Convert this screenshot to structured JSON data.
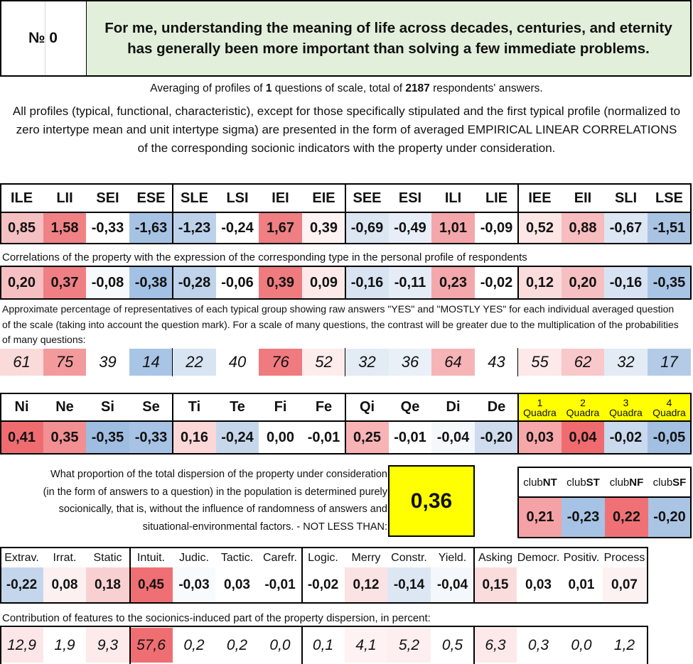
{
  "header": {
    "number_label": "№ 0",
    "title": "For me, understanding the meaning of life across decades, centuries, and eternity has generally been more important than solving a few immediate problems."
  },
  "summary": {
    "prefix": "Averaging of profiles of ",
    "questions": "1",
    "middle": " questions of scale, total of ",
    "respondents": "2187",
    "suffix": " respondents' answers."
  },
  "intro": "All profiles (typical, functional, characteristic), except for those specifically stipulated and the first typical profile (normalized to zero intertype mean and unit intertype sigma) are presented in the form of averaged EMPIRICAL LINEAR CORRELATIONS of the corresponding socionic indicators with the property under consideration.",
  "types": {
    "labels": [
      "ILE",
      "LII",
      "SEI",
      "ESE",
      "SLE",
      "LSI",
      "IEI",
      "EIE",
      "SEE",
      "ESI",
      "ILI",
      "LIE",
      "IEE",
      "EII",
      "SLI",
      "LSE"
    ],
    "normalized": [
      "0,85",
      "1,58",
      "-0,33",
      "-1,63",
      "-1,23",
      "-0,24",
      "1,67",
      "0,39",
      "-0,69",
      "-0,49",
      "1,01",
      "-0,09",
      "0,52",
      "0,88",
      "-0,67",
      "-1,51"
    ],
    "normalized_colors": [
      "#f5c0c2",
      "#f08286",
      "#ffffff",
      "#a7c3e4",
      "#bcd1ea",
      "#ffffff",
      "#ef7f82",
      "#fff2f2",
      "#dce6f2",
      "#e8eef7",
      "#f4a7aa",
      "#ffffff",
      "#fde6e6",
      "#f7bcbe",
      "#dde6f3",
      "#a9c3e3"
    ],
    "correlation_caption": "Correlations of the property with the expression of the corresponding type in the personal profile of respondents",
    "correlations": [
      "0,20",
      "0,37",
      "-0,08",
      "-0,38",
      "-0,28",
      "-0,06",
      "0,39",
      "0,09",
      "-0,16",
      "-0,11",
      "0,23",
      "-0,02",
      "0,12",
      "0,20",
      "-0,16",
      "-0,35"
    ],
    "correlation_colors": [
      "#f6c0c2",
      "#f07f83",
      "#f7f9fc",
      "#a3c1e4",
      "#bfd3ea",
      "#ffffff",
      "#ef7b7f",
      "#fde9e9",
      "#d8e4f2",
      "#e5ecf6",
      "#f4a8ab",
      "#ffffff",
      "#fbdcdc",
      "#f6c0c2",
      "#d7e3f2",
      "#a9c5e5"
    ],
    "percent_caption": "Approximate percentage of representatives of each typical group showing raw answers \"YES\" and \"MOSTLY YES\" for each individual averaged question of the scale (taking into account the question mark). For a scale of many questions, the contrast will be greater due to the multiplication of the probabilities of many questions:",
    "percents": [
      "61",
      "75",
      "39",
      "14",
      "22",
      "40",
      "76",
      "52",
      "32",
      "36",
      "64",
      "43",
      "55",
      "62",
      "32",
      "17"
    ],
    "percent_colors": [
      "#fbdada",
      "#f39a9d",
      "#ffffff",
      "#a9c5e5",
      "#d8e4f2",
      "#ffffff",
      "#f07b7f",
      "#fdecec",
      "#e3ebf5",
      "#eaf0f8",
      "#f6b4b7",
      "#ffffff",
      "#fde9e9",
      "#f8c8ca",
      "#e3ebf5",
      "#b3cbe7"
    ]
  },
  "functions": {
    "labels": [
      "Ni",
      "Ne",
      "Si",
      "Se",
      "Ti",
      "Te",
      "Fi",
      "Fe",
      "Qi",
      "Qe",
      "Di",
      "De"
    ],
    "values": [
      "0,41",
      "0,35",
      "-0,35",
      "-0,33",
      "0,16",
      "-0,24",
      "0,00",
      "-0,01",
      "0,25",
      "-0,01",
      "-0,04",
      "-0,20"
    ],
    "colors": [
      "#ee6c70",
      "#f18f92",
      "#9fbde1",
      "#a6c2e4",
      "#fbd7d8",
      "#c6d7ec",
      "#ffffff",
      "#ffffff",
      "#f7b3b6",
      "#ffffff",
      "#f5f8fb",
      "#cfdcee"
    ]
  },
  "quadras": {
    "labels": [
      {
        "num": "1",
        "word": "Quadra"
      },
      {
        "num": "2",
        "word": "Quadra"
      },
      {
        "num": "3",
        "word": "Quadra"
      },
      {
        "num": "4",
        "word": "Quadra"
      }
    ],
    "values": [
      "0,03",
      "0,04",
      "-0,02",
      "-0,05"
    ],
    "colors": [
      "#f5a7aa",
      "#ef6b6f",
      "#c9d9ee",
      "#a3bfe2"
    ]
  },
  "dispersion": {
    "text": "What proportion of the total dispersion of the property under consideration (in the form of answers to a question) in the population is determined purely socionically, that is, without the influence of randomness of answers and situational-environmental factors. - NOT LESS THAN:",
    "value": "0,36"
  },
  "clubs": {
    "labels": [
      {
        "pre": "club",
        "bold": "NT"
      },
      {
        "pre": "club",
        "bold": "ST"
      },
      {
        "pre": "club",
        "bold": "NF"
      },
      {
        "pre": "club",
        "bold": "SF"
      }
    ],
    "values": [
      "0,21",
      "-0,23",
      "0,22",
      "-0,20"
    ],
    "colors": [
      "#f4a2a5",
      "#a6c2e4",
      "#ef7175",
      "#aac4e4"
    ]
  },
  "reinin": {
    "labels": [
      "Extrav.",
      "Irrat.",
      "Static",
      "Intuit.",
      "Judic.",
      "Tactic.",
      "Carefr.",
      "Logic.",
      "Merry",
      "Constr.",
      "Yield.",
      "Asking",
      "Democr.",
      "Positiv.",
      "Process"
    ],
    "values": [
      "-0,22",
      "0,08",
      "0,18",
      "0,45",
      "-0,03",
      "0,03",
      "-0,01",
      "-0,02",
      "0,12",
      "-0,14",
      "-0,04",
      "0,15",
      "0,03",
      "0,01",
      "0,07"
    ],
    "value_colors": [
      "#c4d6ec",
      "#fdf0f0",
      "#f9d0d1",
      "#ef7074",
      "#f8fafc",
      "#ffffff",
      "#ffffff",
      "#ffffff",
      "#fbe2e3",
      "#dde7f3",
      "#f4f7fb",
      "#fbdcdd",
      "#ffffff",
      "#ffffff",
      "#fdf2f2"
    ],
    "contrib_caption": "Contribution of features to the socionics-induced part of the property dispersion, in percent:",
    "contributions": [
      "12,9",
      "1,9",
      "9,3",
      "57,6",
      "0,2",
      "0,2",
      "0,0",
      "0,1",
      "4,1",
      "5,2",
      "0,5",
      "6,3",
      "0,3",
      "0,0",
      "1,2"
    ],
    "contrib_colors": [
      "#fce6e7",
      "#ffffff",
      "#fdeaea",
      "#ef6e72",
      "#ffffff",
      "#ffffff",
      "#ffffff",
      "#ffffff",
      "#fef2f2",
      "#fdefef",
      "#ffffff",
      "#fde9e9",
      "#ffffff",
      "#ffffff",
      "#ffffff"
    ]
  }
}
